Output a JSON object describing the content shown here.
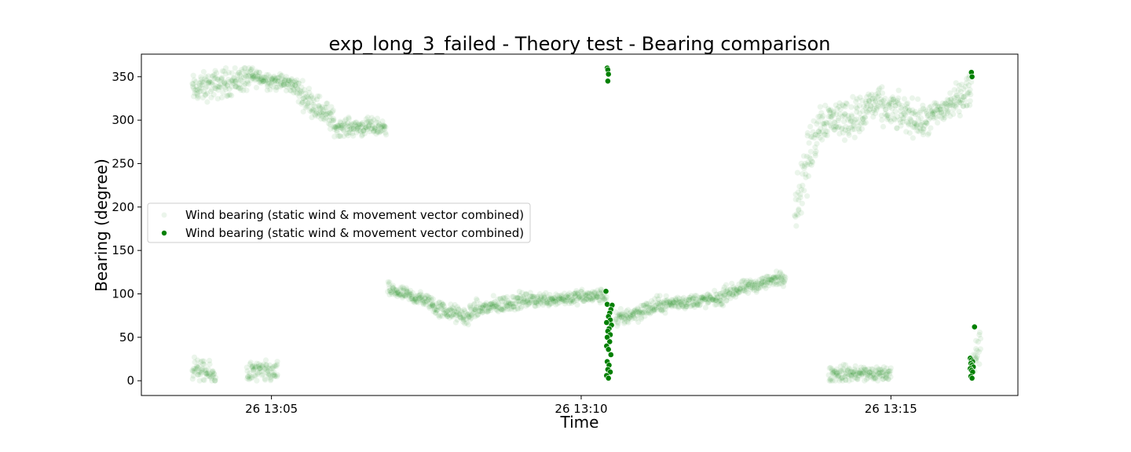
{
  "chart_data": {
    "type": "scatter",
    "title": "exp_long_3_failed - Theory test - Bearing comparison",
    "xlabel": "Time",
    "ylabel": "Bearing (degree)",
    "x_unit": "minutes after 26 13:00",
    "xlim": [
      2.9,
      17.05
    ],
    "ylim": [
      -17,
      376
    ],
    "yticks": [
      0,
      50,
      100,
      150,
      200,
      250,
      300,
      350
    ],
    "xticks": [
      {
        "value": 5,
        "label": "26 13:05"
      },
      {
        "value": 10,
        "label": "26 13:10"
      },
      {
        "value": 15,
        "label": "26 13:15"
      }
    ],
    "grid": false,
    "legend_position": "center-left",
    "colors": {
      "series": "#008000"
    },
    "series": [
      {
        "name": "Wind bearing (static wind & movement vector combined)",
        "style": "faint",
        "opacity": 0.08,
        "segments": [
          {
            "x_from": 3.72,
            "x_to": 4.7,
            "y_from": 335,
            "y_to": 350,
            "spread": 20
          },
          {
            "x_from": 4.7,
            "x_to": 5.4,
            "y_from": 350,
            "y_to": 340,
            "spread": 12
          },
          {
            "x_from": 5.4,
            "x_to": 6.0,
            "y_from": 335,
            "y_to": 300,
            "spread": 18
          },
          {
            "x_from": 6.0,
            "x_to": 6.85,
            "y_from": 292,
            "y_to": 292,
            "spread": 12
          },
          {
            "x_from": 3.72,
            "x_to": 4.1,
            "y_from": 15,
            "y_to": 5,
            "spread": 15
          },
          {
            "x_from": 4.6,
            "x_to": 5.1,
            "y_from": 10,
            "y_to": 10,
            "spread": 15
          },
          {
            "x_from": 6.88,
            "x_to": 7.6,
            "y_from": 105,
            "y_to": 90,
            "spread": 10
          },
          {
            "x_from": 7.6,
            "x_to": 8.2,
            "y_from": 85,
            "y_to": 72,
            "spread": 12
          },
          {
            "x_from": 8.2,
            "x_to": 9.0,
            "y_from": 80,
            "y_to": 92,
            "spread": 12
          },
          {
            "x_from": 9.0,
            "x_to": 10.4,
            "y_from": 92,
            "y_to": 98,
            "spread": 10
          },
          {
            "x_from": 10.55,
            "x_to": 11.3,
            "y_from": 70,
            "y_to": 88,
            "spread": 12
          },
          {
            "x_from": 11.3,
            "x_to": 12.3,
            "y_from": 88,
            "y_to": 95,
            "spread": 10
          },
          {
            "x_from": 12.3,
            "x_to": 13.3,
            "y_from": 100,
            "y_to": 120,
            "spread": 10
          },
          {
            "x_from": 13.45,
            "x_to": 13.85,
            "y_from": 200,
            "y_to": 300,
            "spread": 40
          },
          {
            "x_from": 13.85,
            "x_to": 14.6,
            "y_from": 300,
            "y_to": 305,
            "spread": 28
          },
          {
            "x_from": 14.6,
            "x_to": 15.5,
            "y_from": 320,
            "y_to": 300,
            "spread": 25
          },
          {
            "x_from": 15.5,
            "x_to": 16.3,
            "y_from": 295,
            "y_to": 335,
            "spread": 22
          },
          {
            "x_from": 14.0,
            "x_to": 15.0,
            "y_from": 8,
            "y_to": 8,
            "spread": 12
          },
          {
            "x_from": 16.3,
            "x_to": 16.45,
            "y_from": 15,
            "y_to": 45,
            "spread": 20
          }
        ]
      },
      {
        "name": "Wind bearing (static wind & movement vector combined)",
        "style": "solid",
        "opacity": 1,
        "points": [
          [
            10.42,
            360
          ],
          [
            10.43,
            358
          ],
          [
            10.44,
            353
          ],
          [
            10.43,
            345
          ],
          [
            10.4,
            103
          ],
          [
            10.42,
            88
          ],
          [
            10.5,
            87
          ],
          [
            10.48,
            82
          ],
          [
            10.46,
            78
          ],
          [
            10.44,
            74
          ],
          [
            10.47,
            70
          ],
          [
            10.41,
            67
          ],
          [
            10.49,
            64
          ],
          [
            10.45,
            60
          ],
          [
            10.43,
            57
          ],
          [
            10.47,
            53
          ],
          [
            10.42,
            50
          ],
          [
            10.46,
            45
          ],
          [
            10.41,
            40
          ],
          [
            10.44,
            36
          ],
          [
            10.48,
            30
          ],
          [
            10.42,
            22
          ],
          [
            10.45,
            18
          ],
          [
            10.43,
            13
          ],
          [
            10.47,
            10
          ],
          [
            10.41,
            6
          ],
          [
            10.44,
            3
          ],
          [
            16.3,
            355
          ],
          [
            16.31,
            350
          ],
          [
            16.35,
            62
          ],
          [
            16.28,
            26
          ],
          [
            16.3,
            24
          ],
          [
            16.32,
            22
          ],
          [
            16.29,
            20
          ],
          [
            16.31,
            18
          ],
          [
            16.33,
            16
          ],
          [
            16.28,
            14
          ],
          [
            16.3,
            12
          ],
          [
            16.32,
            10
          ],
          [
            16.29,
            5
          ],
          [
            16.31,
            3
          ]
        ]
      }
    ]
  }
}
